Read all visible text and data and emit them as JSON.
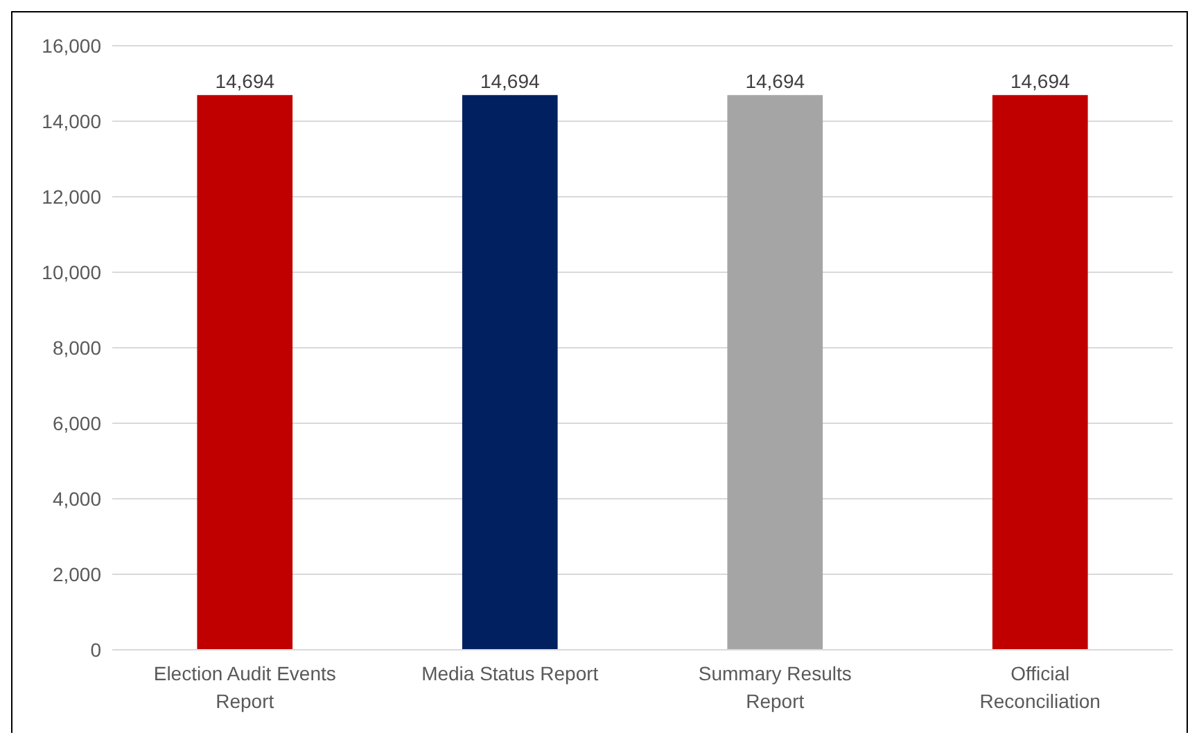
{
  "chart_data": {
    "type": "bar",
    "categories": [
      "Election Audit Events Report",
      "Media Status Report",
      "Summary Results Report",
      "Official Reconciliation"
    ],
    "values": [
      14694,
      14694,
      14694,
      14694
    ],
    "colors": [
      "#c00000",
      "#002060",
      "#a5a5a5",
      "#c00000"
    ],
    "ylim": [
      0,
      16000
    ],
    "yticks": [
      {
        "value": 0,
        "label": "0"
      },
      {
        "value": 2000,
        "label": "2,000"
      },
      {
        "value": 4000,
        "label": "4,000"
      },
      {
        "value": 6000,
        "label": "6,000"
      },
      {
        "value": 8000,
        "label": "8,000"
      },
      {
        "value": 10000,
        "label": "10,000"
      },
      {
        "value": 12000,
        "label": "12,000"
      },
      {
        "value": 14000,
        "label": "14,000"
      },
      {
        "value": 16000,
        "label": "16,000"
      }
    ],
    "value_labels": [
      "14,694",
      "14,694",
      "14,694",
      "14,694"
    ],
    "grid": "y"
  }
}
